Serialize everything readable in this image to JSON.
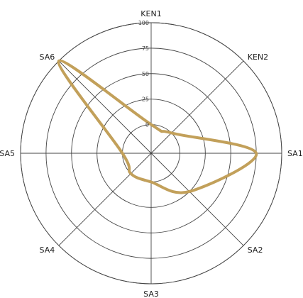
{
  "chart_data": {
    "type": "radar",
    "axes": [
      "KEN1",
      "KEN2",
      "SA1",
      "SA2",
      "SA3",
      "SA4",
      "SA5",
      "SA6"
    ],
    "rticks": [
      "0",
      "25",
      "50",
      "75",
      "100"
    ],
    "rlim": [
      0,
      100
    ],
    "grid": true,
    "series": [
      {
        "values": [
          0,
          0,
          75,
          25,
          0,
          0,
          0,
          100
        ],
        "color": "#c2a05a"
      }
    ]
  }
}
